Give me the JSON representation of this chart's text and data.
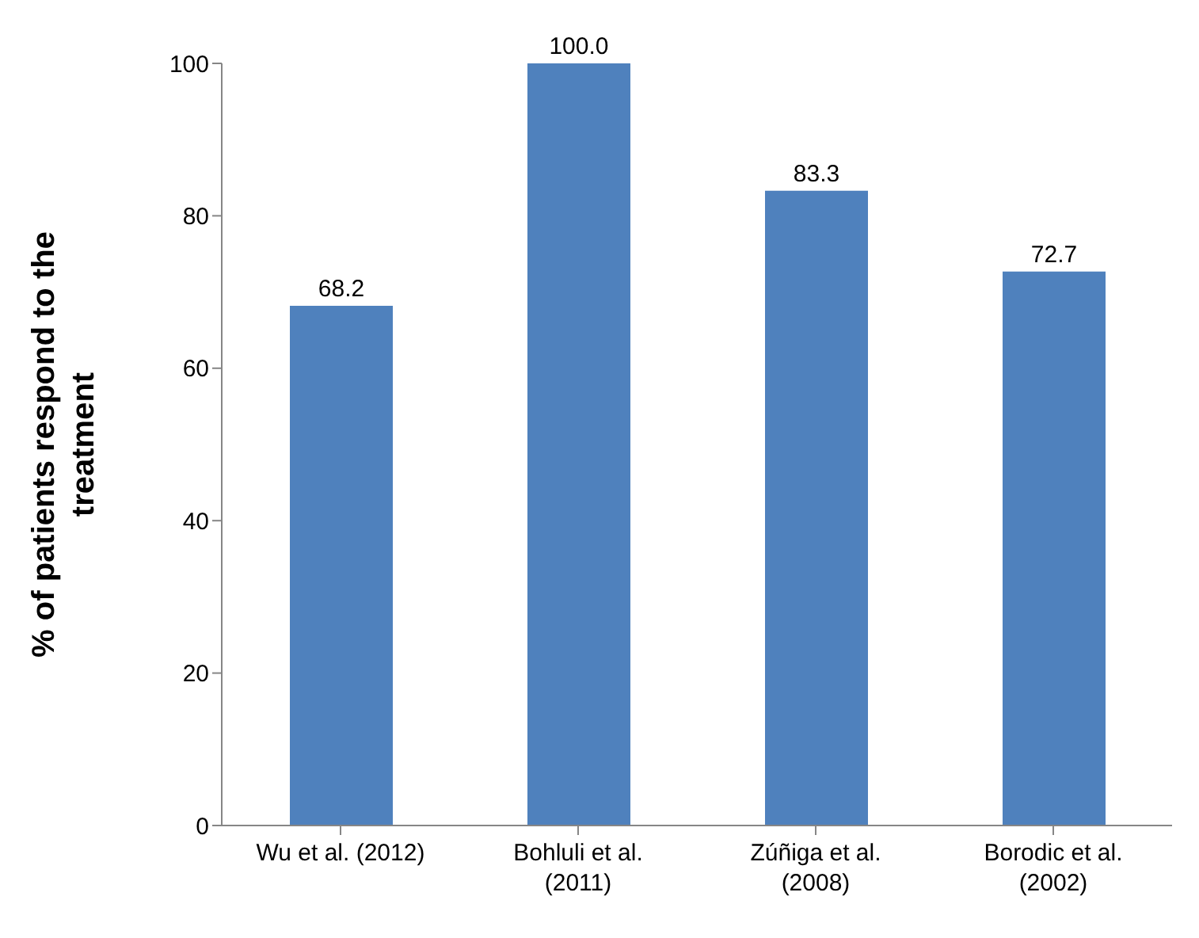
{
  "chart_data": {
    "type": "bar",
    "ylabel": "% of patients respond to the treatment",
    "categories": [
      "Wu et al. (2012)",
      "Bohluli et al. (2011)",
      "Zúñiga et al. (2008)",
      "Borodic et al. (2002)"
    ],
    "values": [
      68.2,
      100.0,
      83.3,
      72.7
    ],
    "value_labels": [
      "68.2",
      "100.0",
      "83.3",
      "72.7"
    ],
    "color": "#4f81bd",
    "ylim": [
      0,
      100
    ],
    "yticks": [
      0,
      20,
      40,
      60,
      80,
      100
    ],
    "grid": false,
    "legend": false
  }
}
